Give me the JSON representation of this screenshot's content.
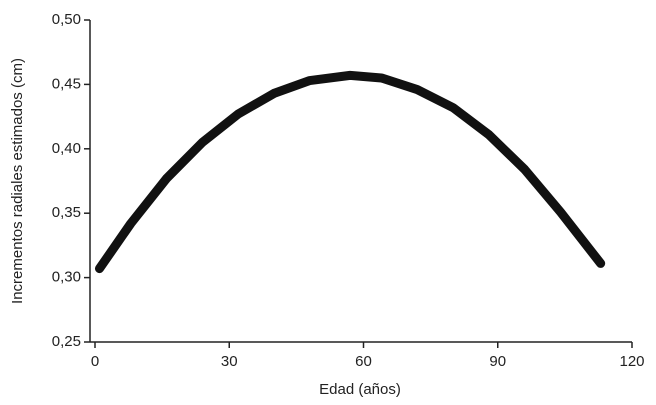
{
  "chart_data": {
    "type": "line",
    "xlabel": "Edad (años)",
    "ylabel": "Incrementos radiales estimados (cm)",
    "x": [
      1,
      8,
      16,
      24,
      32,
      40,
      48,
      57,
      64,
      72,
      80,
      88,
      96,
      104,
      113
    ],
    "series": [
      {
        "color": "#111111",
        "values": [
          0.307,
          0.342,
          0.377,
          0.405,
          0.427,
          0.443,
          0.453,
          0.457,
          0.455,
          0.446,
          0.432,
          0.411,
          0.384,
          0.351,
          0.311
        ]
      }
    ],
    "xlim": [
      0,
      120
    ],
    "xticks": [
      0,
      30,
      60,
      90,
      120
    ],
    "ylim": [
      0.25,
      0.5
    ],
    "yticks": [
      {
        "value": 0.25,
        "label": "0,25"
      },
      {
        "value": 0.3,
        "label": "0,30"
      },
      {
        "value": 0.35,
        "label": "0,35"
      },
      {
        "value": 0.4,
        "label": "0,40"
      },
      {
        "value": 0.45,
        "label": "0,45"
      },
      {
        "value": 0.5,
        "label": "0,50"
      }
    ]
  }
}
